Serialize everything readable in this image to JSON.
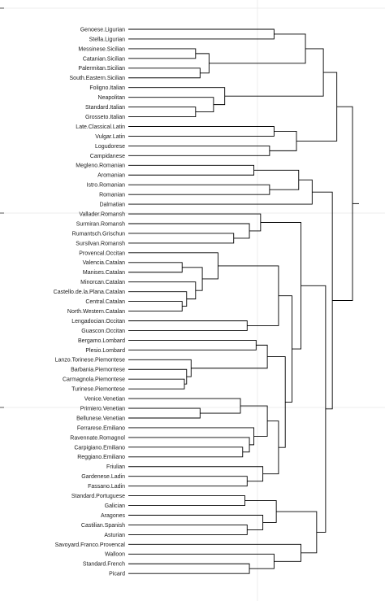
{
  "dendrogram": {
    "leaves": [
      "Genoese.Ligurian",
      "Stella.Ligurian",
      "Messinese.Sicilian",
      "Catanian.Sicilian",
      "Palermitan.Sicilian",
      "South.Eastern.Sicilian",
      "Foligno.Italian",
      "Neapolitan",
      "Standard.Italian",
      "Grosseto.Italian",
      "Late.Classical.Latin",
      "Vulgar.Latin",
      "Logudorese",
      "Campidanese",
      "Megleno.Romanian",
      "Aromanian",
      "Istro.Romanian",
      "Romanian",
      "Dalmatian",
      "Vallader.Romansh",
      "Surmiran.Romansh",
      "Rumantsch.Grischun",
      "Sursilvan.Romansh",
      "Provencal.Occitan",
      "Valencia.Catalan",
      "Manises.Catalan",
      "Minorcan.Catalan",
      "Castello.de.la.Plana.Catalan",
      "Central.Catalan",
      "North.Western.Catalan",
      "Lengadocian.Occitan",
      "Guascon.Occitan",
      "Bergamo.Lombard",
      "Plesio.Lombard",
      "Lanzo.Torinese.Piemontese",
      "Barbania.Piemontese",
      "Carmagnola.Piemontese",
      "Turinese.Piemontese",
      "Venice.Venetian",
      "Primiero.Venetian",
      "Bellunese.Venetian",
      "Ferrarese.Emiliano",
      "Ravennate.Romagnol",
      "Carpigiano.Emiliano",
      "Reggiano.Emiliano",
      "Friulian",
      "Gardenese.Ladin",
      "Fassano.Ladin",
      "Standard.Portuguese",
      "Galician",
      "Aragones",
      "Castilian.Spanish",
      "Asturian",
      "Savoyard.Franco.Provencal",
      "Walloon",
      "Standard.French",
      "Picard"
    ],
    "merges": [
      [
        0,
        1,
        0.65
      ],
      [
        2,
        3,
        0.3
      ],
      [
        4,
        5,
        0.32
      ],
      [
        -2,
        -3,
        0.36
      ],
      [
        -1,
        -4,
        0.79
      ],
      [
        8,
        9,
        0.3
      ],
      [
        7,
        -6,
        0.38
      ],
      [
        6,
        -7,
        0.43
      ],
      [
        -5,
        -8,
        0.87
      ],
      [
        10,
        11,
        0.65
      ],
      [
        12,
        13,
        0.63
      ],
      [
        -10,
        -11,
        0.75
      ],
      [
        -9,
        -12,
        0.93
      ],
      [
        14,
        15,
        0.56
      ],
      [
        16,
        17,
        0.63
      ],
      [
        -14,
        -15,
        0.76
      ],
      [
        -16,
        18,
        0.82
      ],
      [
        21,
        22,
        0.47
      ],
      [
        20,
        -18,
        0.54
      ],
      [
        19,
        -19,
        0.59
      ],
      [
        24,
        25,
        0.24
      ],
      [
        28,
        29,
        0.24
      ],
      [
        27,
        -22,
        0.26
      ],
      [
        26,
        -23,
        0.3
      ],
      [
        -21,
        -24,
        0.33
      ],
      [
        23,
        -25,
        0.4
      ],
      [
        30,
        31,
        0.53
      ],
      [
        -26,
        -27,
        0.67
      ],
      [
        32,
        33,
        0.57
      ],
      [
        36,
        37,
        0.25
      ],
      [
        35,
        -30,
        0.26
      ],
      [
        34,
        -31,
        0.28
      ],
      [
        -29,
        -32,
        0.62
      ],
      [
        39,
        40,
        0.32
      ],
      [
        38,
        -34,
        0.5
      ],
      [
        43,
        44,
        0.51
      ],
      [
        42,
        -36,
        0.54
      ],
      [
        41,
        -37,
        0.56
      ],
      [
        -35,
        -38,
        0.62
      ],
      [
        46,
        47,
        0.53
      ],
      [
        45,
        -40,
        0.6
      ],
      [
        -39,
        -41,
        0.67
      ],
      [
        -33,
        -42,
        0.7
      ],
      [
        -28,
        -43,
        0.73
      ],
      [
        -20,
        -44,
        0.77
      ],
      [
        48,
        49,
        0.52
      ],
      [
        51,
        52,
        0.53
      ],
      [
        50,
        -47,
        0.6
      ],
      [
        -46,
        -48,
        0.66
      ],
      [
        55,
        56,
        0.54
      ],
      [
        54,
        -50,
        0.65
      ],
      [
        53,
        -51,
        0.77
      ],
      [
        -49,
        -52,
        0.84
      ],
      [
        -45,
        -53,
        0.88
      ],
      [
        -17,
        -54,
        0.91
      ],
      [
        -13,
        -55,
        1.0
      ]
    ]
  }
}
